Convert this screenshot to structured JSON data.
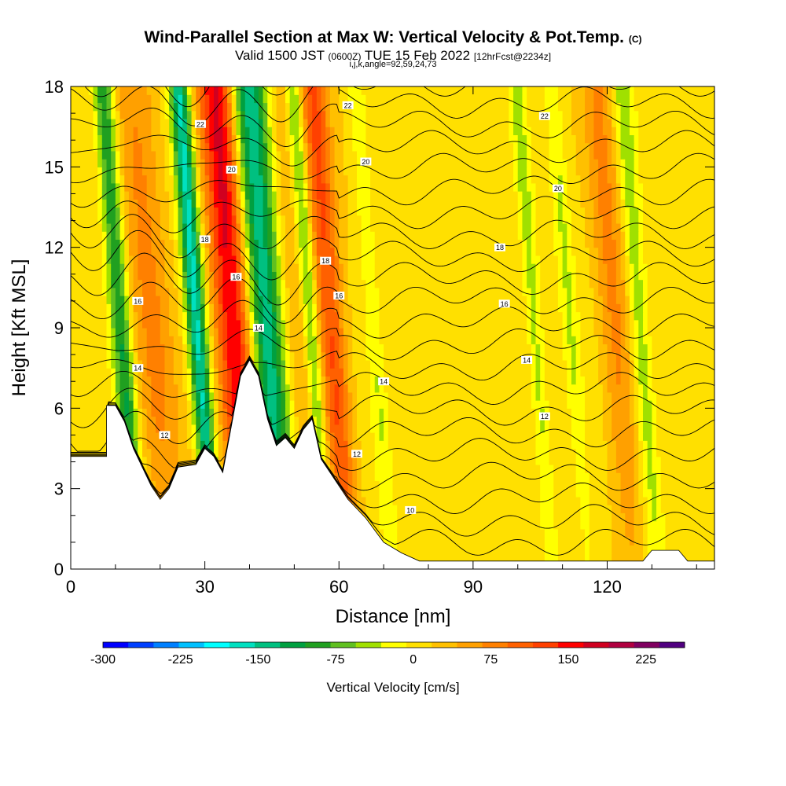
{
  "header": {
    "title_main": "Wind-Parallel Section at Max W: Vertical Velocity & Pot.Temp.",
    "title_mark": "(C)",
    "subtitle_a": "Valid 1500 JST",
    "subtitle_b": "(0600Z)",
    "subtitle_c": "TUE 15 Feb 2022",
    "subtitle_d": "[12hrFcst@2234z]",
    "info_line": "i,j,k,angle=92,59,24,73"
  },
  "chart_data": {
    "type": "heatmap",
    "xlabel": "Distance [nm]",
    "ylabel": "Height [Kft MSL]",
    "xlim": [
      0,
      144
    ],
    "ylim": [
      0,
      18
    ],
    "x_ticks": [
      0,
      30,
      60,
      90,
      120
    ],
    "y_ticks": [
      0,
      3,
      6,
      9,
      12,
      15,
      18
    ],
    "colorbar": {
      "label": "Vertical Velocity [cm/s]",
      "ticks": [
        -300,
        -225,
        -150,
        -75,
        0,
        75,
        150,
        225
      ],
      "min": -300,
      "max": 262.5,
      "colors": [
        "#0000ff",
        "#0040ff",
        "#0080ff",
        "#00c0ff",
        "#00ffff",
        "#00e0c0",
        "#00c080",
        "#00a040",
        "#20a020",
        "#60c020",
        "#a0e000",
        "#ffff00",
        "#ffe000",
        "#ffc000",
        "#ffa000",
        "#ff8000",
        "#ff6000",
        "#ff4000",
        "#ff0000",
        "#d00020",
        "#b00040",
        "#800060",
        "#500080"
      ]
    },
    "terrain": [
      [
        0,
        4.2
      ],
      [
        8,
        4.2
      ],
      [
        8,
        6.1
      ],
      [
        10,
        6.1
      ],
      [
        12,
        5.5
      ],
      [
        14,
        4.5
      ],
      [
        16,
        3.8
      ],
      [
        18,
        3.1
      ],
      [
        20,
        2.6
      ],
      [
        22,
        3.0
      ],
      [
        24,
        3.8
      ],
      [
        28,
        3.9
      ],
      [
        30,
        4.5
      ],
      [
        32,
        4.2
      ],
      [
        34,
        3.6
      ],
      [
        36,
        5.4
      ],
      [
        38,
        7.2
      ],
      [
        40,
        7.8
      ],
      [
        42,
        7.2
      ],
      [
        44,
        5.6
      ],
      [
        46,
        4.6
      ],
      [
        48,
        4.9
      ],
      [
        50,
        4.5
      ],
      [
        52,
        5.2
      ],
      [
        54,
        5.6
      ],
      [
        56,
        4.1
      ],
      [
        58,
        3.6
      ],
      [
        62,
        2.6
      ],
      [
        66,
        1.9
      ],
      [
        70,
        1.0
      ],
      [
        74,
        0.6
      ],
      [
        78,
        0.3
      ],
      [
        82,
        0.3
      ],
      [
        128,
        0.3
      ],
      [
        130,
        0.7
      ],
      [
        136,
        0.7
      ],
      [
        138,
        0.3
      ],
      [
        144,
        0.3
      ]
    ],
    "updrafts": [
      {
        "x0": 15,
        "x1": 26,
        "w": 60
      },
      {
        "x0": 34,
        "x1": 44,
        "w": 170
      },
      {
        "x0": 44,
        "x1": 56,
        "w": 90
      },
      {
        "x0": 57,
        "x1": 64,
        "w": 110
      },
      {
        "x0": 120,
        "x1": 128,
        "w": 60
      }
    ],
    "downdrafts": [
      {
        "x0": 11,
        "x1": 16,
        "w": -120
      },
      {
        "x0": 28,
        "x1": 33,
        "w": -170
      },
      {
        "x0": 41,
        "x1": 52,
        "w": -220
      },
      {
        "x0": 54,
        "x1": 58,
        "w": -90
      },
      {
        "x0": 68,
        "x1": 72,
        "w": -40
      },
      {
        "x0": 104,
        "x1": 108,
        "w": -50
      },
      {
        "x0": 112,
        "x1": 116,
        "w": -40
      },
      {
        "x0": 127,
        "x1": 132,
        "w": -60
      }
    ],
    "theta_contours": [
      {
        "label": "10",
        "at": [
          76,
          2.2
        ]
      },
      {
        "label": "12",
        "at": [
          21,
          5.0
        ]
      },
      {
        "label": "12",
        "at": [
          64,
          4.3
        ]
      },
      {
        "label": "12",
        "at": [
          106,
          5.7
        ]
      },
      {
        "label": "14",
        "at": [
          15,
          7.5
        ]
      },
      {
        "label": "14",
        "at": [
          42,
          9.0
        ]
      },
      {
        "label": "14",
        "at": [
          70,
          7.0
        ]
      },
      {
        "label": "14",
        "at": [
          102,
          7.8
        ]
      },
      {
        "label": "16",
        "at": [
          15,
          10.0
        ]
      },
      {
        "label": "16",
        "at": [
          37,
          10.9
        ]
      },
      {
        "label": "16",
        "at": [
          60,
          10.2
        ]
      },
      {
        "label": "16",
        "at": [
          97,
          9.9
        ]
      },
      {
        "label": "18",
        "at": [
          30,
          12.3
        ]
      },
      {
        "label": "18",
        "at": [
          57,
          11.5
        ]
      },
      {
        "label": "18",
        "at": [
          96,
          12.0
        ]
      },
      {
        "label": "20",
        "at": [
          36,
          14.9
        ]
      },
      {
        "label": "20",
        "at": [
          66,
          15.2
        ]
      },
      {
        "label": "20",
        "at": [
          109,
          14.2
        ]
      },
      {
        "label": "22",
        "at": [
          29,
          16.6
        ]
      },
      {
        "label": "22",
        "at": [
          62,
          17.3
        ]
      },
      {
        "label": "22",
        "at": [
          106,
          16.9
        ]
      }
    ]
  }
}
